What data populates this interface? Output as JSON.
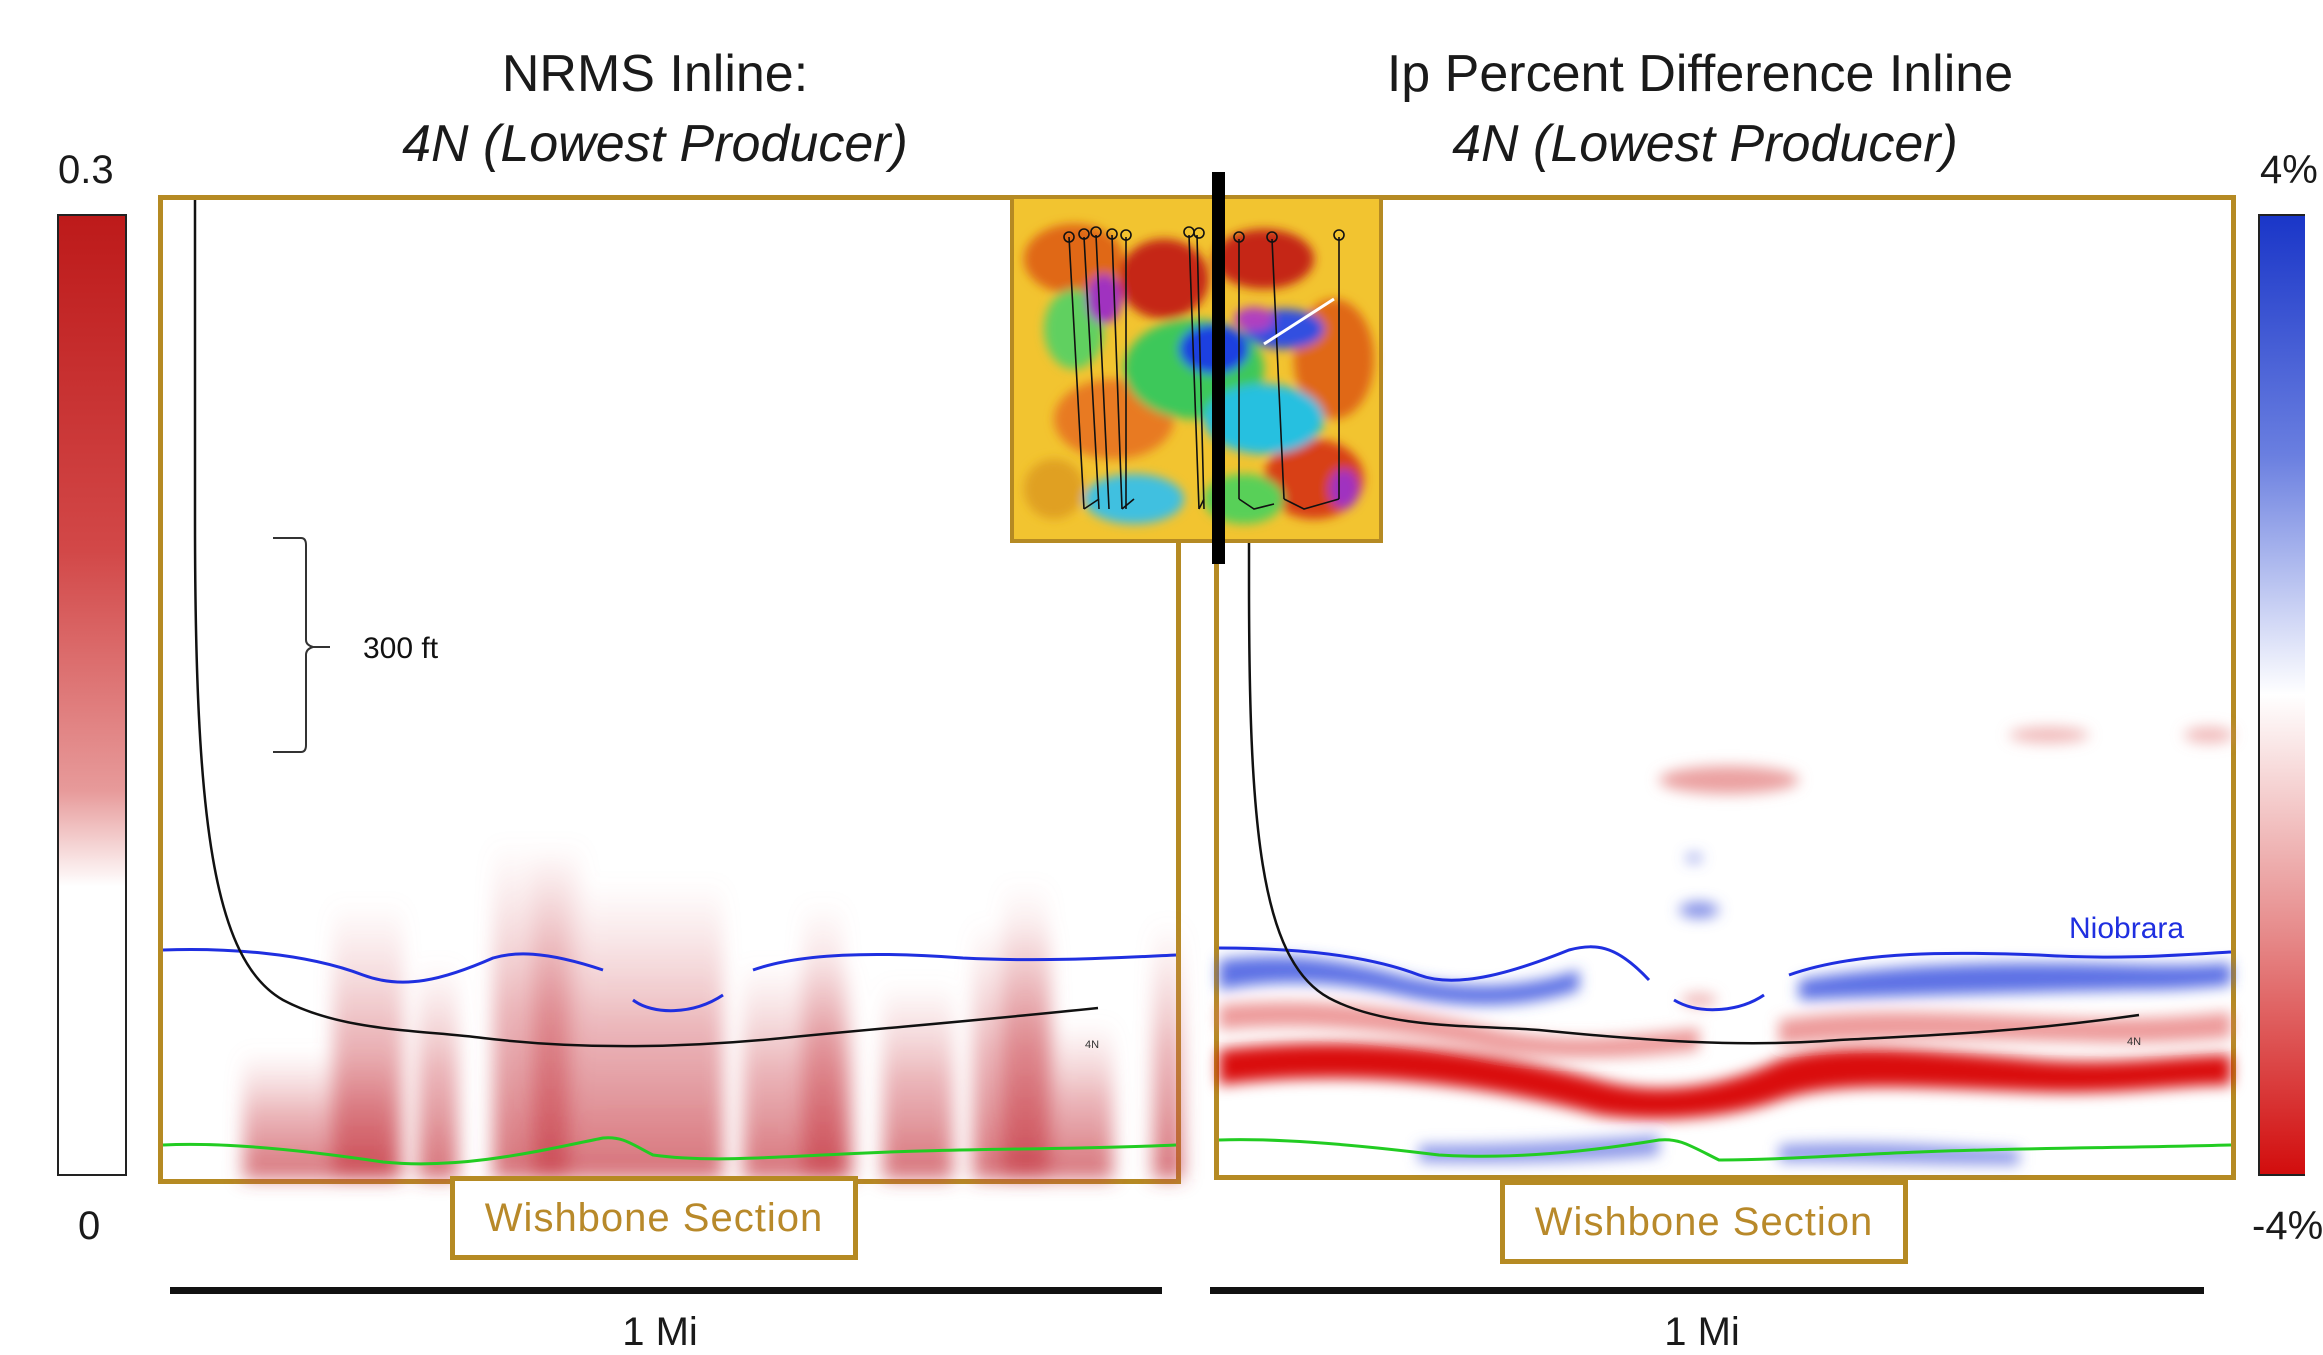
{
  "left_panel": {
    "title_line1": "NRMS Inline:",
    "title_line2": "4N (Lowest Producer)",
    "scale_label": "300 ft",
    "section_label": "Wishbone Section",
    "scale_bar_label": "1 Mi",
    "well_label": "4N"
  },
  "right_panel": {
    "title_line1": "Ip Percent Difference Inline",
    "title_line2": "4N (Lowest Producer)",
    "horizon_label": "Niobrara",
    "section_label": "Wishbone Section",
    "scale_bar_label": "1 Mi",
    "well_label": "4N"
  },
  "left_colorbar": {
    "max": "0.3",
    "min": "0",
    "colors": [
      "#c00000",
      "#ffffff"
    ]
  },
  "right_colorbar": {
    "max": "4%",
    "min": "-4%",
    "colors": [
      "#1030c8",
      "#ffffff",
      "#d00000"
    ]
  },
  "colors": {
    "frame": "#b58a23",
    "horizon_blue": "#1f2fe0",
    "horizon_green": "#22cc22",
    "wellpath": "#111111"
  }
}
